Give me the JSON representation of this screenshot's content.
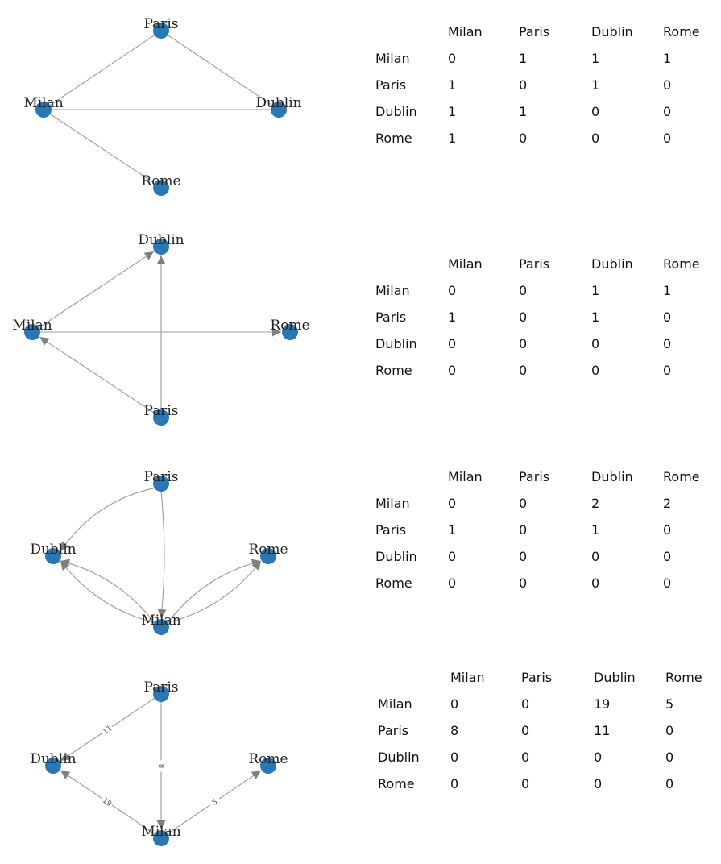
{
  "diagrams": [
    {
      "directed": false,
      "nodes": [
        {
          "id": "Paris",
          "label": "Paris"
        },
        {
          "id": "Milan",
          "label": "Milan"
        },
        {
          "id": "Dublin",
          "label": "Dublin"
        },
        {
          "id": "Rome",
          "label": "Rome"
        }
      ],
      "edges": [
        {
          "from": "Milan",
          "to": "Paris"
        },
        {
          "from": "Paris",
          "to": "Dublin"
        },
        {
          "from": "Milan",
          "to": "Dublin"
        },
        {
          "from": "Milan",
          "to": "Rome"
        }
      ],
      "matrix": {
        "columns": [
          "Milan",
          "Paris",
          "Dublin",
          "Rome"
        ],
        "rows": [
          {
            "label": "Milan",
            "values": [
              "0",
              "1",
              "1",
              "1"
            ]
          },
          {
            "label": "Paris",
            "values": [
              "1",
              "0",
              "1",
              "0"
            ]
          },
          {
            "label": "Dublin",
            "values": [
              "1",
              "1",
              "0",
              "0"
            ]
          },
          {
            "label": "Rome",
            "values": [
              "1",
              "0",
              "0",
              "0"
            ]
          }
        ]
      }
    },
    {
      "directed": true,
      "nodes": [
        {
          "id": "Dublin",
          "label": "Dublin"
        },
        {
          "id": "Milan",
          "label": "Milan"
        },
        {
          "id": "Rome",
          "label": "Rome"
        },
        {
          "id": "Paris",
          "label": "Paris"
        }
      ],
      "edges": [
        {
          "from": "Milan",
          "to": "Dublin"
        },
        {
          "from": "Milan",
          "to": "Rome"
        },
        {
          "from": "Paris",
          "to": "Milan"
        },
        {
          "from": "Paris",
          "to": "Dublin"
        }
      ],
      "matrix": {
        "columns": [
          "Milan",
          "Paris",
          "Dublin",
          "Rome"
        ],
        "rows": [
          {
            "label": "Milan",
            "values": [
              "0",
              "0",
              "1",
              "1"
            ]
          },
          {
            "label": "Paris",
            "values": [
              "1",
              "0",
              "1",
              "0"
            ]
          },
          {
            "label": "Dublin",
            "values": [
              "0",
              "0",
              "0",
              "0"
            ]
          },
          {
            "label": "Rome",
            "values": [
              "0",
              "0",
              "0",
              "0"
            ]
          }
        ]
      }
    },
    {
      "directed": true,
      "nodes": [
        {
          "id": "Paris",
          "label": "Paris"
        },
        {
          "id": "Dublin",
          "label": "Dublin"
        },
        {
          "id": "Rome",
          "label": "Rome"
        },
        {
          "id": "Milan",
          "label": "Milan"
        }
      ],
      "edges": [
        {
          "from": "Paris",
          "to": "Dublin"
        },
        {
          "from": "Paris",
          "to": "Milan"
        },
        {
          "from": "Milan",
          "to": "Dublin"
        },
        {
          "from": "Milan",
          "to": "Dublin"
        },
        {
          "from": "Milan",
          "to": "Rome"
        },
        {
          "from": "Milan",
          "to": "Rome"
        }
      ],
      "matrix": {
        "columns": [
          "Milan",
          "Paris",
          "Dublin",
          "Rome"
        ],
        "rows": [
          {
            "label": "Milan",
            "values": [
              "0",
              "0",
              "2",
              "2"
            ]
          },
          {
            "label": "Paris",
            "values": [
              "1",
              "0",
              "1",
              "0"
            ]
          },
          {
            "label": "Dublin",
            "values": [
              "0",
              "0",
              "0",
              "0"
            ]
          },
          {
            "label": "Rome",
            "values": [
              "0",
              "0",
              "0",
              "0"
            ]
          }
        ]
      }
    },
    {
      "directed": true,
      "nodes": [
        {
          "id": "Paris",
          "label": "Paris"
        },
        {
          "id": "Dublin",
          "label": "Dublin"
        },
        {
          "id": "Rome",
          "label": "Rome"
        },
        {
          "id": "Milan",
          "label": "Milan"
        }
      ],
      "edges": [
        {
          "from": "Paris",
          "to": "Dublin",
          "weight": "11"
        },
        {
          "from": "Paris",
          "to": "Milan",
          "weight": "8"
        },
        {
          "from": "Milan",
          "to": "Dublin",
          "weight": "19"
        },
        {
          "from": "Milan",
          "to": "Rome",
          "weight": "5"
        }
      ],
      "matrix": {
        "columns": [
          "Milan",
          "Paris",
          "Dublin",
          "Rome"
        ],
        "rows": [
          {
            "label": "Milan",
            "values": [
              "0",
              "0",
              "19",
              "5"
            ]
          },
          {
            "label": "Paris",
            "values": [
              "8",
              "0",
              "11",
              "0"
            ]
          },
          {
            "label": "Dublin",
            "values": [
              "0",
              "0",
              "0",
              "0"
            ]
          },
          {
            "label": "Rome",
            "values": [
              "0",
              "0",
              "0",
              "0"
            ]
          }
        ]
      }
    }
  ]
}
